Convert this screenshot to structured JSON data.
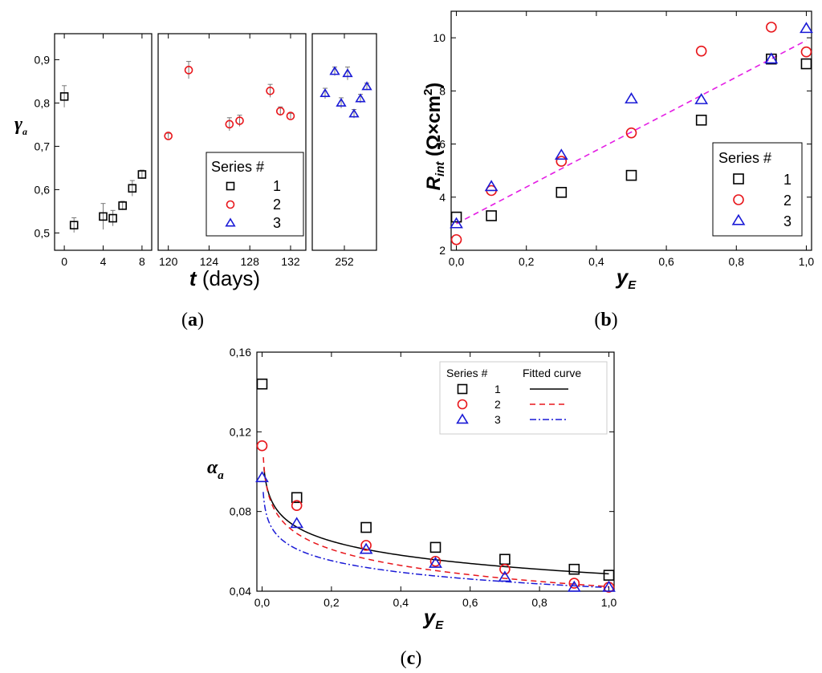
{
  "chart_data": [
    {
      "panel": "(a)",
      "type": "scatter",
      "ylabel": "γ",
      "ylabel_sub": "a",
      "xlabel_var": "t",
      "xlabel_unit": " (days)",
      "ylim": [
        0.46,
        0.96
      ],
      "yticks": [
        "0,5",
        "0,6",
        "0,7",
        "0,8",
        "0,9"
      ],
      "segments": [
        {
          "xlim": [
            -1,
            9
          ],
          "ticks": [
            0,
            4,
            8
          ],
          "tick_labels": [
            "0",
            "4",
            "8"
          ]
        },
        {
          "xlim": [
            119,
            133.5
          ],
          "ticks": [
            120,
            124,
            128,
            132
          ],
          "tick_labels": [
            "120",
            "124",
            "128",
            "132"
          ]
        },
        {
          "xlim": [
            247,
            257
          ],
          "ticks": [
            252
          ],
          "tick_labels": [
            "252"
          ]
        }
      ],
      "legend": {
        "title": "Series #",
        "entries": [
          "1",
          "2",
          "3"
        ]
      },
      "series": [
        {
          "name": "1",
          "marker": "square",
          "color": "#000000",
          "segment": 0,
          "x": [
            0,
            1,
            4,
            5,
            6,
            7,
            8
          ],
          "y": [
            0.815,
            0.518,
            0.538,
            0.534,
            0.563,
            0.603,
            0.635
          ],
          "err": [
            0.025,
            0.017,
            0.03,
            0.018,
            0.01,
            0.018,
            0.01
          ]
        },
        {
          "name": "2",
          "marker": "circle",
          "color": "#e8161b",
          "segment": 1,
          "x": [
            120,
            122,
            126,
            127,
            130,
            131,
            132
          ],
          "y": [
            0.724,
            0.876,
            0.751,
            0.759,
            0.828,
            0.781,
            0.77
          ],
          "err": [
            0.006,
            0.02,
            0.015,
            0.013,
            0.015,
            0.01,
            0.006
          ]
        },
        {
          "name": "3",
          "marker": "triangle",
          "color": "#1a1ad6",
          "segment": 2,
          "x": [
            249,
            250.5,
            251.5,
            252.5,
            253.5,
            254.5,
            255.5
          ],
          "y": [
            0.822,
            0.873,
            0.8,
            0.868,
            0.775,
            0.81,
            0.838
          ],
          "err": [
            0.012,
            0.01,
            0.012,
            0.015,
            0.01,
            0.01,
            0.008
          ]
        }
      ]
    },
    {
      "panel": "(b)",
      "type": "scatter",
      "ylabel": "R",
      "ylabel_sub": "int",
      "ylabel_unit": "(Ω×cm",
      "ylabel_sup": "2",
      "ylabel_close": ")",
      "xlabel_var": "y",
      "xlabel_sub": "E",
      "xlim": [
        -0.015,
        1.015
      ],
      "ylim": [
        2,
        11
      ],
      "xticks": [
        "0,0",
        "0,2",
        "0,4",
        "0,6",
        "0,8",
        "1,0"
      ],
      "yticks": [
        "2",
        "4",
        "6",
        "8",
        "10"
      ],
      "legend": {
        "title": "Series #",
        "entries": [
          "1",
          "2",
          "3"
        ]
      },
      "fit_line": {
        "x": [
          0,
          1
        ],
        "y": [
          3.0,
          9.9
        ],
        "style": "dashed",
        "color": "#e41ee4"
      },
      "series": [
        {
          "name": "1",
          "marker": "square",
          "color": "#000000",
          "x": [
            0,
            0.1,
            0.3,
            0.5,
            0.7,
            0.9,
            1.0
          ],
          "y": [
            3.25,
            3.3,
            4.18,
            4.82,
            6.9,
            9.2,
            9.02
          ]
        },
        {
          "name": "2",
          "marker": "circle",
          "color": "#e8161b",
          "x": [
            0,
            0.1,
            0.3,
            0.5,
            0.7,
            0.9,
            1.0
          ],
          "y": [
            2.4,
            4.25,
            5.35,
            6.42,
            9.5,
            10.4,
            9.47
          ]
        },
        {
          "name": "3",
          "marker": "triangle",
          "color": "#1a1ad6",
          "x": [
            0,
            0.1,
            0.3,
            0.5,
            0.7,
            0.9,
            1.0
          ],
          "y": [
            3.0,
            4.4,
            5.58,
            7.7,
            7.67,
            9.2,
            10.35
          ]
        }
      ]
    },
    {
      "panel": "(c)",
      "type": "scatter",
      "ylabel": "α",
      "ylabel_sub": "a",
      "xlabel_var": "y",
      "xlabel_sub": "E",
      "xlim": [
        -0.015,
        1.015
      ],
      "ylim": [
        0.04,
        0.16
      ],
      "xticks": [
        "0,0",
        "0,2",
        "0,4",
        "0,6",
        "0,8",
        "1,0"
      ],
      "yticks": [
        "0,04",
        "0,08",
        "0,12",
        "0,16"
      ],
      "legend": {
        "title": "Series #",
        "curve_title": "Fitted curve",
        "entries": [
          "1",
          "2",
          "3"
        ]
      },
      "series": [
        {
          "name": "1",
          "marker": "square",
          "color": "#000000",
          "x": [
            0,
            0.1,
            0.3,
            0.5,
            0.7,
            0.9,
            1.0
          ],
          "y": [
            0.144,
            0.087,
            0.072,
            0.062,
            0.056,
            0.051,
            0.048
          ],
          "fit": {
            "a": 0.0487,
            "b": 0.0102,
            "xmin": 0.0055,
            "style": "solid"
          }
        },
        {
          "name": "2",
          "marker": "circle",
          "color": "#e8161b",
          "x": [
            0,
            0.1,
            0.3,
            0.5,
            0.7,
            0.9,
            1.0
          ],
          "y": [
            0.113,
            0.083,
            0.063,
            0.055,
            0.051,
            0.044,
            0.042
          ],
          "fit": {
            "a": 0.0423,
            "b": 0.0116,
            "xmin": 0.0037,
            "style": "dashed"
          }
        },
        {
          "name": "3",
          "marker": "triangle",
          "color": "#1a1ad6",
          "x": [
            0,
            0.1,
            0.3,
            0.5,
            0.7,
            0.9,
            1.0
          ],
          "y": [
            0.097,
            0.074,
            0.061,
            0.054,
            0.047,
            0.042,
            0.042
          ],
          "fit": {
            "a": 0.0418,
            "b": 0.0084,
            "xmin": 0.0033,
            "style": "dashdot"
          }
        }
      ]
    }
  ],
  "captions": [
    "(a)",
    "(b)",
    "(c)"
  ]
}
